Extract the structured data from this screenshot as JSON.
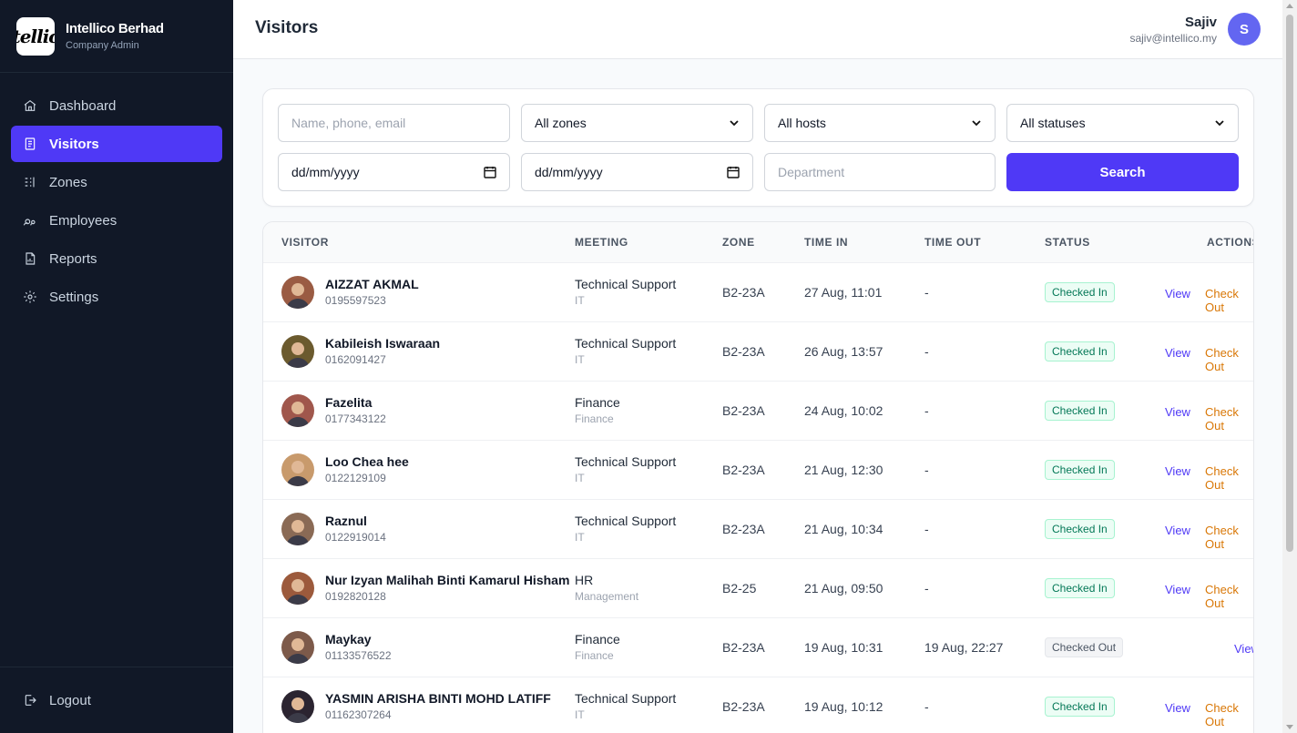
{
  "company": {
    "logo_text": "tellic",
    "name": "Intellico Berhad",
    "role": "Company Admin"
  },
  "nav": {
    "items": [
      {
        "label": "Dashboard",
        "icon": "home-icon"
      },
      {
        "label": "Visitors",
        "icon": "clipboard-icon",
        "active": true
      },
      {
        "label": "Zones",
        "icon": "zones-icon"
      },
      {
        "label": "Employees",
        "icon": "users-icon"
      },
      {
        "label": "Reports",
        "icon": "report-icon"
      },
      {
        "label": "Settings",
        "icon": "gear-icon"
      }
    ],
    "logout": "Logout"
  },
  "header": {
    "title": "Visitors",
    "user": {
      "name": "Sajiv",
      "email": "sajiv@intellico.my",
      "initial": "S"
    }
  },
  "filters": {
    "search_placeholder": "Name, phone, email",
    "zone_select": "All zones",
    "host_select": "All hosts",
    "status_select": "All statuses",
    "date_from": "dd/mm/yyyy",
    "date_to": "dd/mm/yyyy",
    "department_placeholder": "Department",
    "search_button": "Search"
  },
  "table": {
    "columns": [
      "VISITOR",
      "MEETING",
      "ZONE",
      "TIME IN",
      "TIME OUT",
      "STATUS",
      "ACTIONS"
    ],
    "actions": {
      "view": "View",
      "check_out": "Check Out"
    },
    "rows": [
      {
        "name": "AIZZAT AKMAL",
        "phone": "0195597523",
        "meeting": "Technical Support",
        "dept": "IT",
        "zone": "B2-23A",
        "time_in": "27 Aug, 11:01",
        "time_out": "-",
        "status": "Checked In",
        "avatar_color": "#9a5b43"
      },
      {
        "name": "Kabileish Iswaraan",
        "phone": "0162091427",
        "meeting": "Technical Support",
        "dept": "IT",
        "zone": "B2-23A",
        "time_in": "26 Aug, 13:57",
        "time_out": "-",
        "status": "Checked In",
        "avatar_color": "#6b5a2e"
      },
      {
        "name": "Fazelita",
        "phone": "0177343122",
        "meeting": "Finance",
        "dept": "Finance",
        "zone": "B2-23A",
        "time_in": "24 Aug, 10:02",
        "time_out": "-",
        "status": "Checked In",
        "avatar_color": "#a0574c"
      },
      {
        "name": "Loo Chea hee",
        "phone": "0122129109",
        "meeting": "Technical Support",
        "dept": "IT",
        "zone": "B2-23A",
        "time_in": "21 Aug, 12:30",
        "time_out": "-",
        "status": "Checked In",
        "avatar_color": "#c89a6c"
      },
      {
        "name": "Raznul",
        "phone": "0122919014",
        "meeting": "Technical Support",
        "dept": "IT",
        "zone": "B2-23A",
        "time_in": "21 Aug, 10:34",
        "time_out": "-",
        "status": "Checked In",
        "avatar_color": "#8a6a55"
      },
      {
        "name": "Nur Izyan Malihah Binti Kamarul Hisham",
        "phone": "0192820128",
        "meeting": "HR",
        "dept": "Management",
        "zone": "B2-25",
        "time_in": "21 Aug, 09:50",
        "time_out": "-",
        "status": "Checked In",
        "avatar_color": "#9c5a3c"
      },
      {
        "name": "Maykay",
        "phone": "01133576522",
        "meeting": "Finance",
        "dept": "Finance",
        "zone": "B2-23A",
        "time_in": "19 Aug, 10:31",
        "time_out": "19 Aug, 22:27",
        "status": "Checked Out",
        "avatar_color": "#7d5a4a"
      },
      {
        "name": "YASMIN ARISHA BINTI MOHD LATIFF",
        "phone": "01162307264",
        "meeting": "Technical Support",
        "dept": "IT",
        "zone": "B2-23A",
        "time_in": "19 Aug, 10:12",
        "time_out": "-",
        "status": "Checked In",
        "avatar_color": "#2b2430"
      }
    ]
  },
  "colors": {
    "sidebar_bg": "#111827",
    "accent": "#4f39f6",
    "checked_in": "#047857",
    "check_out_action": "#d97706"
  }
}
